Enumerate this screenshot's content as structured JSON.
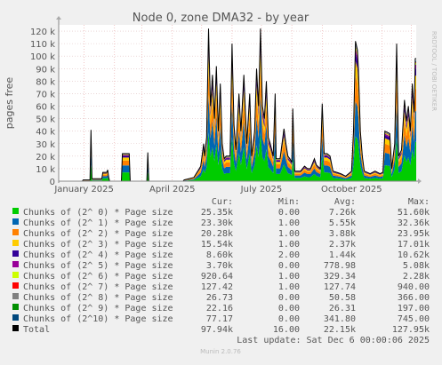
{
  "chart_data": {
    "type": "area",
    "title": "Node 0, zone DMA32 - by year",
    "ylabel": "pages free",
    "side_label": "RRDTOOL / TOBI OETIKER",
    "ylim": [
      0,
      125000
    ],
    "y_ticks": [
      0,
      10000,
      20000,
      30000,
      40000,
      50000,
      60000,
      70000,
      80000,
      90000,
      100000,
      110000,
      120000
    ],
    "y_tick_labels": [
      "0",
      "10 k",
      "20 k",
      "30 k",
      "40 k",
      "50 k",
      "60 k",
      "70 k",
      "80 k",
      "90 k",
      "100 k",
      "110 k",
      "120 k"
    ],
    "x_tick_labels": [
      {
        "date": "2025-01-01",
        "label": "January 2025"
      },
      {
        "date": "2025-04-01",
        "label": "April 2025"
      },
      {
        "date": "2025-07-01",
        "label": "July 2025"
      },
      {
        "date": "2025-10-01",
        "label": "October 2025"
      }
    ],
    "x_start": "2024-12-06",
    "x_end": "2025-12-06",
    "grid": true,
    "legend_headers": {
      "cur": "Cur:",
      "min": "Min:",
      "avg": "Avg:",
      "max": "Max:"
    },
    "series": [
      {
        "name": "Chunks of (2^ 0) * Page size",
        "color": "#00cc00",
        "cur": "25.35k",
        "min": "0.00",
        "avg": "7.26k",
        "max": "51.60k"
      },
      {
        "name": "Chunks of (2^ 1) * Page size",
        "color": "#0066b3",
        "cur": "23.30k",
        "min": "1.00",
        "avg": "5.55k",
        "max": "32.36k"
      },
      {
        "name": "Chunks of (2^ 2) * Page size",
        "color": "#ff8000",
        "cur": "20.28k",
        "min": "1.00",
        "avg": "3.88k",
        "max": "23.95k"
      },
      {
        "name": "Chunks of (2^ 3) * Page size",
        "color": "#ffcc00",
        "cur": "15.54k",
        "min": "1.00",
        "avg": "2.37k",
        "max": "17.01k"
      },
      {
        "name": "Chunks of (2^ 4) * Page size",
        "color": "#330099",
        "cur": "8.60k",
        "min": "2.00",
        "avg": "1.44k",
        "max": "10.62k"
      },
      {
        "name": "Chunks of (2^ 5) * Page size",
        "color": "#990099",
        "cur": "3.70k",
        "min": "0.00",
        "avg": "778.98",
        "max": "5.08k"
      },
      {
        "name": "Chunks of (2^ 6) * Page size",
        "color": "#ccff00",
        "cur": "920.64",
        "min": "1.00",
        "avg": "329.34",
        "max": "2.28k"
      },
      {
        "name": "Chunks of (2^ 7) * Page size",
        "color": "#ff0000",
        "cur": "127.42",
        "min": "1.00",
        "avg": "127.74",
        "max": "940.00"
      },
      {
        "name": "Chunks of (2^ 8) * Page size",
        "color": "#808080",
        "cur": "26.73",
        "min": "0.00",
        "avg": "50.58",
        "max": "366.00"
      },
      {
        "name": "Chunks of (2^ 9) * Page size",
        "color": "#008f00",
        "cur": "22.16",
        "min": "0.00",
        "avg": "26.31",
        "max": "197.00"
      },
      {
        "name": "Chunks of (2^10) * Page size",
        "color": "#00487d",
        "cur": "77.17",
        "min": "0.00",
        "avg": "341.80",
        "max": "745.00"
      },
      {
        "name": "Total",
        "color": "#000000",
        "cur": "97.94k",
        "min": "16.00",
        "avg": "22.15k",
        "max": "127.95k"
      }
    ],
    "total_points": [
      [
        "2024-12-06",
        0
      ],
      [
        "2024-12-30",
        0
      ],
      [
        "2024-12-31",
        1000
      ],
      [
        "2025-01-07",
        1000
      ],
      [
        "2025-01-08",
        41000
      ],
      [
        "2025-01-09",
        2000
      ],
      [
        "2025-01-19",
        2000
      ],
      [
        "2025-01-20",
        7000
      ],
      [
        "2025-01-24",
        7000
      ],
      [
        "2025-01-25",
        9000
      ],
      [
        "2025-01-26",
        3000
      ],
      [
        "2025-01-27",
        0
      ],
      [
        "2025-02-08",
        0
      ],
      [
        "2025-02-09",
        22000
      ],
      [
        "2025-02-16",
        22000
      ],
      [
        "2025-02-17",
        0
      ],
      [
        "2025-03-06",
        0
      ],
      [
        "2025-03-07",
        23000
      ],
      [
        "2025-03-08",
        0
      ],
      [
        "2025-04-12",
        0
      ],
      [
        "2025-04-13",
        1000
      ],
      [
        "2025-04-23",
        3000
      ],
      [
        "2025-04-27",
        8000
      ],
      [
        "2025-04-30",
        12000
      ],
      [
        "2025-05-03",
        30000
      ],
      [
        "2025-05-04",
        20000
      ],
      [
        "2025-05-06",
        35000
      ],
      [
        "2025-05-08",
        122000
      ],
      [
        "2025-05-09",
        90000
      ],
      [
        "2025-05-10",
        60000
      ],
      [
        "2025-05-12",
        85000
      ],
      [
        "2025-05-14",
        50000
      ],
      [
        "2025-05-16",
        92000
      ],
      [
        "2025-05-18",
        40000
      ],
      [
        "2025-05-20",
        78000
      ],
      [
        "2025-05-22",
        30000
      ],
      [
        "2025-05-24",
        18000
      ],
      [
        "2025-05-26",
        20000
      ],
      [
        "2025-05-30",
        20000
      ],
      [
        "2025-06-01",
        110000
      ],
      [
        "2025-06-03",
        45000
      ],
      [
        "2025-06-05",
        25000
      ],
      [
        "2025-06-08",
        70000
      ],
      [
        "2025-06-10",
        40000
      ],
      [
        "2025-06-13",
        85000
      ],
      [
        "2025-06-16",
        30000
      ],
      [
        "2025-06-19",
        70000
      ],
      [
        "2025-06-21",
        20000
      ],
      [
        "2025-06-24",
        40000
      ],
      [
        "2025-06-26",
        90000
      ],
      [
        "2025-06-28",
        60000
      ],
      [
        "2025-06-30",
        122000
      ],
      [
        "2025-07-02",
        60000
      ],
      [
        "2025-07-04",
        50000
      ],
      [
        "2025-07-06",
        80000
      ],
      [
        "2025-07-08",
        35000
      ],
      [
        "2025-07-10",
        30000
      ],
      [
        "2025-07-13",
        20000
      ],
      [
        "2025-07-15",
        70000
      ],
      [
        "2025-07-16",
        18000
      ],
      [
        "2025-07-20",
        18000
      ],
      [
        "2025-07-24",
        42000
      ],
      [
        "2025-07-26",
        30000
      ],
      [
        "2025-07-28",
        20000
      ],
      [
        "2025-07-30",
        18000
      ],
      [
        "2025-08-01",
        15000
      ],
      [
        "2025-08-02",
        58000
      ],
      [
        "2025-08-04",
        8000
      ],
      [
        "2025-08-10",
        8000
      ],
      [
        "2025-08-14",
        12000
      ],
      [
        "2025-08-17",
        10000
      ],
      [
        "2025-08-20",
        10000
      ],
      [
        "2025-08-24",
        18000
      ],
      [
        "2025-08-26",
        13000
      ],
      [
        "2025-08-30",
        10000
      ],
      [
        "2025-09-01",
        62000
      ],
      [
        "2025-09-03",
        22000
      ],
      [
        "2025-09-06",
        22000
      ],
      [
        "2025-09-09",
        20000
      ],
      [
        "2025-09-12",
        8000
      ],
      [
        "2025-09-16",
        7000
      ],
      [
        "2025-09-20",
        6000
      ],
      [
        "2025-09-25",
        4000
      ],
      [
        "2025-09-28",
        6000
      ],
      [
        "2025-10-01",
        8000
      ],
      [
        "2025-10-03",
        40000
      ],
      [
        "2025-10-05",
        112000
      ],
      [
        "2025-10-07",
        105000
      ],
      [
        "2025-10-08",
        90000
      ],
      [
        "2025-10-10",
        40000
      ],
      [
        "2025-10-12",
        20000
      ],
      [
        "2025-10-14",
        8000
      ],
      [
        "2025-10-20",
        6000
      ],
      [
        "2025-10-25",
        8000
      ],
      [
        "2025-10-30",
        6000
      ],
      [
        "2025-11-02",
        7000
      ],
      [
        "2025-11-04",
        40000
      ],
      [
        "2025-11-09",
        38000
      ],
      [
        "2025-11-11",
        10000
      ],
      [
        "2025-11-14",
        30000
      ],
      [
        "2025-11-16",
        110000
      ],
      [
        "2025-11-18",
        20000
      ],
      [
        "2025-11-21",
        25000
      ],
      [
        "2025-11-24",
        65000
      ],
      [
        "2025-11-26",
        48000
      ],
      [
        "2025-11-28",
        60000
      ],
      [
        "2025-11-30",
        40000
      ],
      [
        "2025-12-02",
        78000
      ],
      [
        "2025-12-04",
        55000
      ],
      [
        "2025-12-05",
        98000
      ],
      [
        "2025-12-06",
        98000
      ]
    ],
    "series_share": [
      0.32,
      0.25,
      0.18,
      0.11,
      0.06,
      0.03,
      0.015,
      0.006,
      0.002,
      0.001,
      0.008
    ]
  },
  "footer": {
    "last_update": "Last update: Sat Dec  6 00:00:06 2025",
    "generator": "Munin 2.0.76"
  }
}
